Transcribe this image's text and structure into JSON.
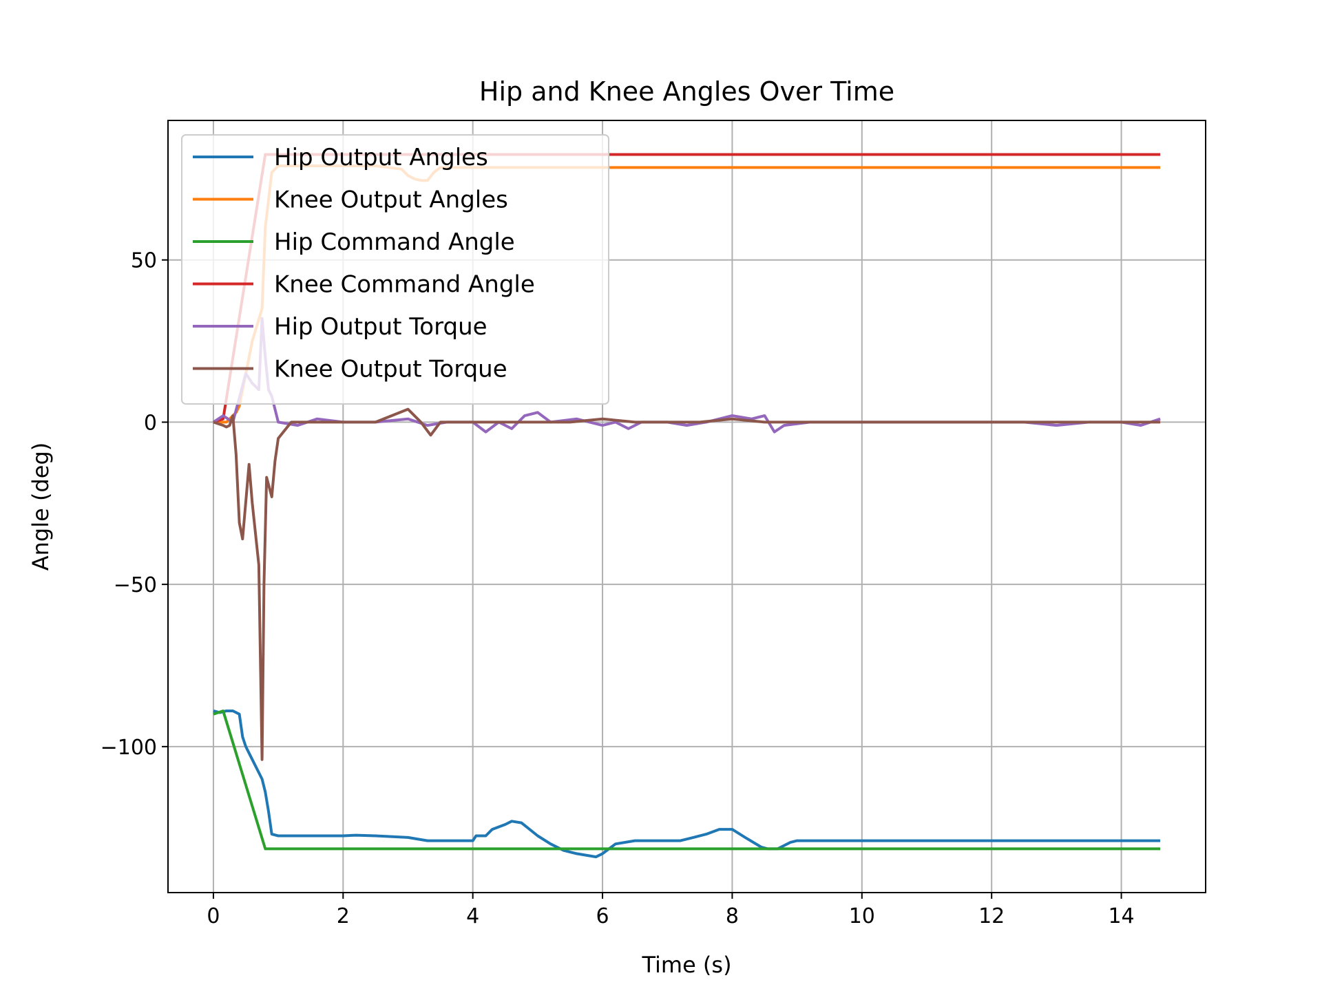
{
  "chart_data": {
    "type": "line",
    "title": "Hip and Knee Angles Over Time",
    "xlabel": "Time (s)",
    "ylabel": "Angle (deg)",
    "xlim": [
      -0.7,
      15.3
    ],
    "ylim": [
      -145,
      93
    ],
    "xticks": [
      0,
      2,
      4,
      6,
      8,
      10,
      12,
      14
    ],
    "xtick_labels": [
      "0",
      "2",
      "4",
      "6",
      "8",
      "10",
      "12",
      "14"
    ],
    "yticks": [
      50,
      0,
      -50,
      -100
    ],
    "ytick_labels": [
      "50",
      "0",
      "−50",
      "−100"
    ],
    "grid": true,
    "legend_position": "upper left",
    "series": [
      {
        "name": "Hip Output Angles",
        "color": "#1f77b4",
        "x": [
          0,
          0.1,
          0.2,
          0.3,
          0.4,
          0.45,
          0.5,
          0.55,
          0.6,
          0.7,
          0.75,
          0.8,
          0.85,
          0.9,
          1.0,
          1.2,
          1.5,
          2.0,
          2.2,
          2.5,
          3.0,
          3.3,
          3.5,
          4.0,
          4.05,
          4.2,
          4.3,
          4.5,
          4.6,
          4.75,
          5.0,
          5.2,
          5.4,
          5.6,
          5.9,
          6.0,
          6.2,
          6.5,
          7.0,
          7.2,
          7.4,
          7.6,
          7.8,
          8.0,
          8.2,
          8.45,
          8.55,
          8.7,
          8.9,
          9.0,
          10.0,
          12.0,
          14.0,
          14.6
        ],
        "y": [
          -89,
          -89.5,
          -89,
          -89,
          -90,
          -97,
          -100,
          -102,
          -104,
          -108,
          -110,
          -114,
          -120,
          -127,
          -127.5,
          -127.5,
          -127.5,
          -127.5,
          -127.3,
          -127.5,
          -128,
          -129,
          -129,
          -129,
          -127.5,
          -127.5,
          -125.5,
          -124,
          -123,
          -123.5,
          -127.5,
          -130,
          -132,
          -133,
          -134,
          -133,
          -130,
          -129,
          -129,
          -129,
          -128,
          -127,
          -125.5,
          -125.5,
          -128,
          -131,
          -131.5,
          -131.5,
          -129.5,
          -129,
          -129,
          -129,
          -129,
          -129
        ]
      },
      {
        "name": "Knee Output Angles",
        "color": "#ff7f0e",
        "x": [
          0,
          0.2,
          0.3,
          0.35,
          0.4,
          0.5,
          0.6,
          0.75,
          0.8,
          0.9,
          1.0,
          2.0,
          2.5,
          2.9,
          3.0,
          3.1,
          3.2,
          3.3,
          3.4,
          3.5,
          4.0,
          6.0,
          10.0,
          14.6
        ],
        "y": [
          0,
          0,
          2,
          3,
          5,
          15,
          25,
          35,
          60,
          77,
          79,
          79,
          79,
          78,
          76,
          75,
          74.5,
          74.5,
          77,
          78.5,
          78.5,
          78.5,
          78.5,
          78.5
        ]
      },
      {
        "name": "Hip Command Angle",
        "color": "#2ca02c",
        "x": [
          0,
          0.15,
          0.8,
          1.0,
          14.6
        ],
        "y": [
          -90,
          -89,
          -131.5,
          -131.5,
          -131.5
        ]
      },
      {
        "name": "Knee Command Angle",
        "color": "#d62728",
        "x": [
          0,
          0.15,
          0.8,
          1.0,
          14.6
        ],
        "y": [
          0,
          1,
          82.5,
          82.5,
          82.5
        ]
      },
      {
        "name": "Hip Output Torque",
        "color": "#9467bd",
        "x": [
          0,
          0.15,
          0.3,
          0.5,
          0.6,
          0.65,
          0.7,
          0.75,
          0.8,
          0.85,
          0.9,
          1.0,
          1.3,
          1.6,
          2.0,
          2.5,
          3.0,
          3.3,
          3.6,
          4.0,
          4.2,
          4.4,
          4.6,
          4.8,
          5.0,
          5.2,
          5.6,
          5.8,
          6.0,
          6.2,
          6.4,
          6.6,
          7.0,
          7.3,
          7.6,
          8.0,
          8.3,
          8.5,
          8.65,
          8.8,
          9.2,
          9.6,
          10.0,
          10.5,
          11.0,
          11.5,
          12.0,
          12.5,
          13.0,
          13.5,
          14.0,
          14.3,
          14.6
        ],
        "y": [
          0,
          2,
          0,
          15,
          12,
          11,
          10,
          32,
          20,
          10,
          8,
          0,
          -1,
          1,
          0,
          0,
          1,
          -1,
          0,
          0,
          -3,
          0,
          -2,
          2,
          3,
          0,
          1,
          0,
          -1,
          0,
          -2,
          0,
          0,
          -1,
          0,
          2,
          1,
          2,
          -3,
          -1,
          0,
          0,
          0,
          0,
          0,
          0,
          0,
          0,
          -1,
          0,
          0,
          -1,
          1
        ]
      },
      {
        "name": "Knee Output Torque",
        "color": "#8c564b",
        "x": [
          0,
          0.15,
          0.2,
          0.25,
          0.3,
          0.35,
          0.4,
          0.45,
          0.55,
          0.6,
          0.7,
          0.75,
          0.78,
          0.82,
          0.9,
          0.95,
          1.0,
          1.2,
          1.5,
          2.0,
          2.5,
          3.0,
          3.2,
          3.35,
          3.5,
          4.0,
          4.5,
          5.0,
          5.5,
          6.0,
          6.5,
          7.0,
          7.5,
          8.0,
          8.5,
          9.0,
          9.5,
          10.0,
          10.5,
          11.0,
          11.5,
          12.0,
          12.5,
          13.0,
          13.5,
          14.0,
          14.3,
          14.6
        ],
        "y": [
          0,
          -1,
          -1.5,
          -1,
          2,
          -10,
          -31,
          -36,
          -13,
          -25,
          -44,
          -104,
          -50,
          -17,
          -23,
          -12,
          -5,
          0,
          0,
          0,
          0,
          4,
          0,
          -4,
          0,
          0,
          0,
          0,
          0,
          1,
          0,
          0,
          0,
          1,
          0,
          0,
          0,
          0,
          0,
          0,
          0,
          0,
          0,
          0,
          0,
          0,
          0,
          0
        ]
      }
    ]
  }
}
